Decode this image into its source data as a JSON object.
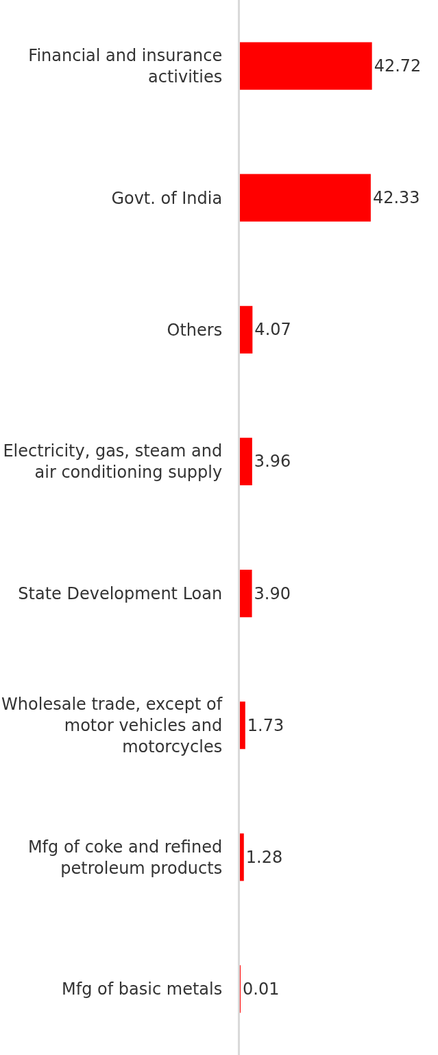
{
  "chart_data": {
    "type": "bar",
    "orientation": "horizontal",
    "categories": [
      "Financial and insurance activities",
      "Govt. of India",
      "Others",
      "Electricity, gas, steam and air conditioning supply",
      "State Development Loan",
      "Wholesale trade, except of motor vehicles and motorcycles",
      "Mfg of coke and refined petroleum products",
      "Mfg of basic metals"
    ],
    "values": [
      42.72,
      42.33,
      4.07,
      3.96,
      3.9,
      1.73,
      1.28,
      0.01
    ],
    "value_labels": [
      "42.72",
      "42.33",
      "4.07",
      "3.96",
      "3.90",
      "1.73",
      "1.28",
      "0.01"
    ],
    "color": "#ff0000",
    "tick_labels": "y",
    "legend": false
  }
}
